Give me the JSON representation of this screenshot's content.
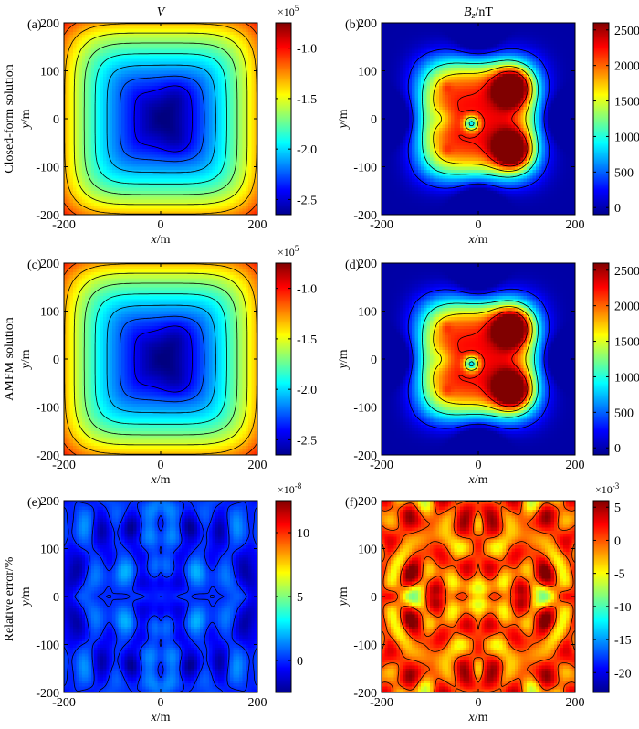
{
  "figure": {
    "row_labels": [
      "Closed-form solution",
      "AMFM solution",
      "Relative error/%"
    ],
    "x_unit": "m"
  },
  "chart_data": [
    {
      "type": "heatmap",
      "id": "a",
      "panel_label": "(a)",
      "title": "V",
      "xlabel": "x",
      "xunit": "/m",
      "ylabel": "y",
      "yunit": "/m",
      "xlim": [
        -200,
        200
      ],
      "ylim": [
        -200,
        200
      ],
      "xticks": [
        "-200",
        "0",
        "200"
      ],
      "yticks": [
        "200",
        "100",
        "0",
        "-100",
        "-200"
      ],
      "colorbar": {
        "exponent": "×10",
        "power": "5",
        "min": -2.65,
        "max": -0.75,
        "ticks": [
          -1.0,
          -1.5,
          -2.0,
          -2.5
        ],
        "tick_labels": [
          "-1.0",
          "-1.5",
          "-2.0",
          "-2.5"
        ]
      },
      "field": "potential",
      "contour_levels": 11
    },
    {
      "type": "heatmap",
      "id": "b",
      "panel_label": "(b)",
      "title": "B",
      "title_sub": "z",
      "title_unit": "/nT",
      "xlabel": "x",
      "xunit": "/m",
      "ylabel": "y",
      "yunit": "/m",
      "xlim": [
        -200,
        200
      ],
      "ylim": [
        -200,
        200
      ],
      "xticks": [
        "-200",
        "0",
        "200"
      ],
      "yticks": [
        "200",
        "100",
        "0",
        "-100",
        "-200"
      ],
      "colorbar": {
        "min": -100,
        "max": 2600,
        "ticks": [
          2500,
          2000,
          1500,
          1000,
          500,
          0
        ],
        "tick_labels": [
          "2500",
          "2000",
          "1500",
          "1000",
          "500",
          "0"
        ]
      },
      "field": "bz",
      "contour_levels": [
        300,
        1000,
        1600,
        2200
      ]
    },
    {
      "type": "heatmap",
      "id": "c",
      "panel_label": "(c)",
      "title": "",
      "xlabel": "x",
      "xunit": "/m",
      "ylabel": "y",
      "yunit": "/m",
      "xlim": [
        -200,
        200
      ],
      "ylim": [
        -200,
        200
      ],
      "xticks": [
        "-200",
        "0",
        "200"
      ],
      "yticks": [
        "200",
        "100",
        "0",
        "-100",
        "-200"
      ],
      "colorbar": {
        "exponent": "×10",
        "power": "5",
        "min": -2.65,
        "max": -0.75,
        "ticks": [
          -1.0,
          -1.5,
          -2.0,
          -2.5
        ],
        "tick_labels": [
          "-1.0",
          "-1.5",
          "-2.0",
          "-2.5"
        ]
      },
      "field": "potential",
      "contour_levels": 11
    },
    {
      "type": "heatmap",
      "id": "d",
      "panel_label": "(d)",
      "title": "",
      "xlabel": "x",
      "xunit": "/m",
      "ylabel": "y",
      "yunit": "/m",
      "xlim": [
        -200,
        200
      ],
      "ylim": [
        -200,
        200
      ],
      "xticks": [
        "-200",
        "0",
        "200"
      ],
      "yticks": [
        "200",
        "100",
        "0",
        "-100",
        "-200"
      ],
      "colorbar": {
        "min": -100,
        "max": 2600,
        "ticks": [
          2500,
          2000,
          1500,
          1000,
          500,
          0
        ],
        "tick_labels": [
          "2500",
          "2000",
          "1500",
          "1000",
          "500",
          "0"
        ]
      },
      "field": "bz",
      "contour_levels": [
        300,
        1000,
        1600,
        2200
      ]
    },
    {
      "type": "heatmap",
      "id": "e",
      "panel_label": "(e)",
      "title": "",
      "xlabel": "x",
      "xunit": "/m",
      "ylabel": "y",
      "yunit": "/m",
      "xlim": [
        -200,
        200
      ],
      "ylim": [
        -200,
        200
      ],
      "xticks": [
        "-200",
        "0",
        "200"
      ],
      "yticks": [
        "200",
        "100",
        "0",
        "-100",
        "-200"
      ],
      "colorbar": {
        "exponent": "×10",
        "power": "-8",
        "min": -2.5,
        "max": 12.5,
        "ticks": [
          10,
          5,
          0
        ],
        "tick_labels": [
          "10",
          "5",
          "0"
        ]
      },
      "field": "noise",
      "noise_range": [
        -1.5,
        1.2
      ],
      "contour_levels": [
        0
      ]
    },
    {
      "type": "heatmap",
      "id": "f",
      "panel_label": "(f)",
      "title": "",
      "xlabel": "x",
      "xunit": "/m",
      "ylabel": "y",
      "yunit": "/m",
      "xlim": [
        -200,
        200
      ],
      "ylim": [
        -200,
        200
      ],
      "xticks": [
        "-200",
        "0",
        "200"
      ],
      "yticks": [
        "200",
        "100",
        "0",
        "-100",
        "-200"
      ],
      "colorbar": {
        "exponent": "×10",
        "power": "-3",
        "min": -23,
        "max": 6,
        "ticks": [
          5,
          0,
          -5,
          -10,
          -15,
          -20
        ],
        "tick_labels": [
          "5",
          "0",
          "-5",
          "-10",
          "-15",
          "-20"
        ]
      },
      "field": "noise",
      "noise_range": [
        -4.5,
        3.5
      ],
      "contour_levels": [
        0
      ]
    }
  ]
}
